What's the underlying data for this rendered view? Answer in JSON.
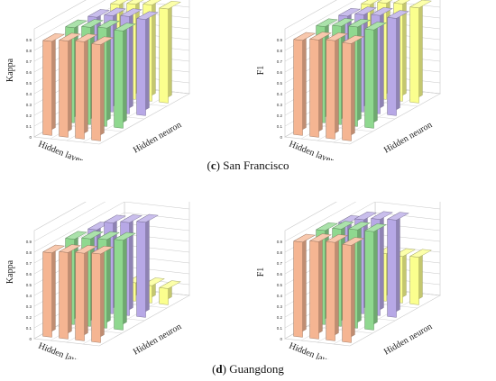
{
  "captions": {
    "c": {
      "letter": "c",
      "text": "San Francisco"
    },
    "d": {
      "letter": "d",
      "text": "Guangdong"
    }
  },
  "colors": {
    "orange": "#f5b592",
    "green": "#8fd88f",
    "purple": "#b7a8e6",
    "yellow": "#fbff8e",
    "grid": "#c8c8c8",
    "axis": "#555555"
  },
  "chart_data": [
    {
      "type": "bar3d",
      "panel": "c",
      "ylabel": "Kappa",
      "xlabel": "Hidden layer",
      "depth_label": "Hidden neuron",
      "zlim": [
        0,
        1.0
      ],
      "zticks": [
        0,
        0.1,
        0.2,
        0.3,
        0.4,
        0.5,
        0.6,
        0.7,
        0.8,
        0.9
      ],
      "colors": [
        "orange",
        "green",
        "purple",
        "yellow"
      ],
      "values": [
        [
          0.87,
          0.89,
          0.9,
          0.89
        ],
        [
          0.88,
          0.9,
          0.91,
          0.9
        ],
        [
          0.86,
          0.89,
          0.9,
          0.89
        ],
        [
          0.86,
          0.88,
          0.89,
          0.87
        ]
      ]
    },
    {
      "type": "bar3d",
      "panel": "c",
      "ylabel": "F1",
      "xlabel": "Hidden layer",
      "depth_label": "Hidden neuron",
      "zlim": [
        0,
        1.0
      ],
      "zticks": [
        0,
        0.1,
        0.2,
        0.3,
        0.4,
        0.5,
        0.6,
        0.7,
        0.8,
        0.9
      ],
      "colors": [
        "orange",
        "green",
        "purple",
        "yellow"
      ],
      "values": [
        [
          0.88,
          0.9,
          0.91,
          0.9
        ],
        [
          0.89,
          0.91,
          0.92,
          0.91
        ],
        [
          0.87,
          0.9,
          0.91,
          0.9
        ],
        [
          0.86,
          0.89,
          0.9,
          0.88
        ]
      ]
    },
    {
      "type": "bar3d",
      "panel": "d",
      "ylabel": "Kappa",
      "xlabel": "Hidden layer",
      "depth_label": "Hidden neuron",
      "zlim": [
        0,
        1.0
      ],
      "zticks": [
        0,
        0.1,
        0.2,
        0.3,
        0.4,
        0.5,
        0.6,
        0.7,
        0.8,
        0.9
      ],
      "colors": [
        "orange",
        "green",
        "purple",
        "yellow"
      ],
      "values": [
        [
          0.78,
          0.8,
          0.81,
          0.82
        ],
        [
          0.79,
          0.81,
          0.82,
          0.83
        ],
        [
          0.76,
          0.84,
          0.86,
          0.88
        ],
        [
          0.17,
          0.17,
          0.16,
          0.15
        ]
      ]
    },
    {
      "type": "bar3d",
      "panel": "d",
      "ylabel": "F1",
      "xlabel": "Hidden layer",
      "depth_label": "Hidden neuron",
      "zlim": [
        0,
        1.0
      ],
      "zticks": [
        0,
        0.1,
        0.2,
        0.3,
        0.4,
        0.5,
        0.6,
        0.7,
        0.8,
        0.9
      ],
      "colors": [
        "orange",
        "green",
        "purple",
        "yellow"
      ],
      "values": [
        [
          0.88,
          0.9,
          0.91,
          0.9
        ],
        [
          0.87,
          0.9,
          0.91,
          0.91
        ],
        [
          0.82,
          0.87,
          0.89,
          0.9
        ],
        [
          0.43,
          0.44,
          0.43,
          0.44
        ]
      ]
    }
  ]
}
